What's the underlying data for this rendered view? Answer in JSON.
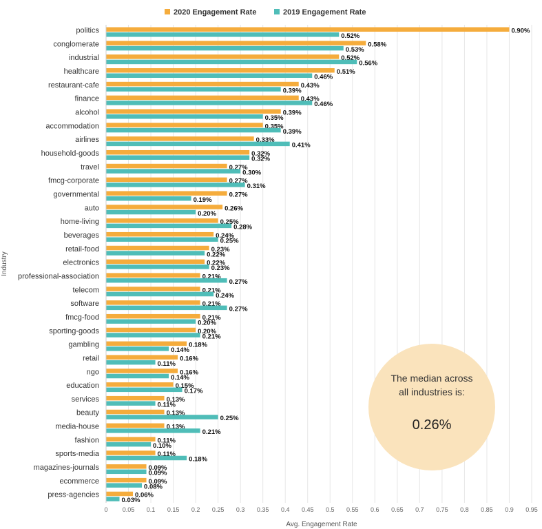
{
  "chart_data": {
    "type": "bar",
    "orientation": "horizontal",
    "title": "",
    "xlabel": "Avg. Engagement Rate",
    "ylabel": "Industry",
    "xlim": [
      0,
      0.95
    ],
    "xticks": [
      "0",
      "0.05",
      "0.1",
      "0.15",
      "0.2",
      "0.25",
      "0.3",
      "0.35",
      "0.4",
      "0.45",
      "0.5",
      "0.55",
      "0.6",
      "0.65",
      "0.7",
      "0.75",
      "0.8",
      "0.85",
      "0.9",
      "0.95"
    ],
    "grid": "vertical",
    "legend_position": "top-center",
    "categories": [
      "politics",
      "conglomerate",
      "industrial",
      "healthcare",
      "restaurant-cafe",
      "finance",
      "alcohol",
      "accommodation",
      "airlines",
      "household-goods",
      "travel",
      "fmcg-corporate",
      "governmental",
      "auto",
      "home-living",
      "beverages",
      "retail-food",
      "electronics",
      "professional-association",
      "telecom",
      "software",
      "fmcg-food",
      "sporting-goods",
      "gambling",
      "retail",
      "ngo",
      "education",
      "services",
      "beauty",
      "media-house",
      "fashion",
      "sports-media",
      "magazines-journals",
      "ecommerce",
      "press-agencies"
    ],
    "series": [
      {
        "name": "2020 Engagement Rate",
        "color": "#F5AC3C",
        "values": [
          0.9,
          0.58,
          0.52,
          0.51,
          0.43,
          0.43,
          0.39,
          0.35,
          0.33,
          0.32,
          0.27,
          0.27,
          0.27,
          0.26,
          0.25,
          0.24,
          0.23,
          0.22,
          0.21,
          0.21,
          0.21,
          0.21,
          0.2,
          0.18,
          0.16,
          0.16,
          0.15,
          0.13,
          0.13,
          0.13,
          0.11,
          0.11,
          0.09,
          0.09,
          0.06
        ],
        "labels": [
          "0.90%",
          "0.58%",
          "0.52%",
          "0.51%",
          "0.43%",
          "0.43%",
          "0.39%",
          "0.35%",
          "0.33%",
          "0.32%",
          "0.27%",
          "0.27%",
          "0.27%",
          "0.26%",
          "0.25%",
          "0.24%",
          "0.23%",
          "0.22%",
          "0.21%",
          "0.21%",
          "0.21%",
          "0.21%",
          "0.20%",
          "0.18%",
          "0.16%",
          "0.16%",
          "0.15%",
          "0.13%",
          "0.13%",
          "0.13%",
          "0.11%",
          "0.11%",
          "0.09%",
          "0.09%",
          "0.06%"
        ]
      },
      {
        "name": "2019 Engagement Rate",
        "color": "#4FBDB8",
        "values": [
          0.52,
          0.53,
          0.56,
          0.46,
          0.39,
          0.46,
          0.35,
          0.39,
          0.41,
          0.32,
          0.3,
          0.31,
          0.19,
          0.2,
          0.28,
          0.25,
          0.22,
          0.23,
          0.27,
          0.24,
          0.27,
          0.2,
          0.21,
          0.14,
          0.11,
          0.14,
          0.17,
          0.11,
          0.25,
          0.21,
          0.1,
          0.18,
          0.09,
          0.08,
          0.03
        ],
        "labels": [
          "0.52%",
          "0.53%",
          "0.56%",
          "0.46%",
          "0.39%",
          "0.46%",
          "0.35%",
          "0.39%",
          "0.41%",
          "0.32%",
          "0.30%",
          "0.31%",
          "0.19%",
          "0.20%",
          "0.28%",
          "0.25%",
          "0.22%",
          "0.23%",
          "0.27%",
          "0.24%",
          "0.27%",
          "0.20%",
          "0.21%",
          "0.14%",
          "0.11%",
          "0.14%",
          "0.17%",
          "0.11%",
          "0.25%",
          "0.21%",
          "0.10%",
          "0.18%",
          "0.09%",
          "0.08%",
          "0.03%"
        ]
      }
    ],
    "annotation": {
      "line1": "The median across",
      "line2": "all industries is:",
      "value": "0.26%",
      "color": "#FAE3BC"
    }
  }
}
